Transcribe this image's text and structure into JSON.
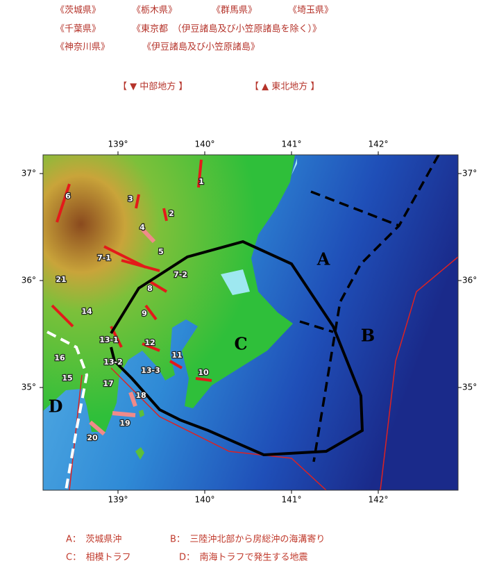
{
  "links": {
    "prefectures": [
      "《茨城県》",
      "《栃木県》",
      "《群馬県》",
      "《埼玉県》",
      "《千葉県》",
      "《東京都　（伊豆諸島及び小笠原諸島を除く）》",
      "《神奈川県》",
      "《伊豆諸島及び小笠原諸島》"
    ],
    "regions": [
      "【 ▼ 中部地方 】",
      "【 ▲ 東北地方 】"
    ]
  },
  "map": {
    "xlim": [
      138.136,
      142.92
    ],
    "ylim": [
      34.04,
      37.175
    ],
    "lon_ticks": [
      {
        "value": 139,
        "label": "139°"
      },
      {
        "value": 140,
        "label": "140°"
      },
      {
        "value": 141,
        "label": "141°"
      },
      {
        "value": 142,
        "label": "142°"
      }
    ],
    "lat_ticks": [
      {
        "value": 37,
        "label": "37°"
      },
      {
        "value": 36,
        "label": "36°"
      },
      {
        "value": 35,
        "label": "35°"
      }
    ],
    "labels": [
      "A",
      "B",
      "C",
      "D",
      "1",
      "2",
      "3",
      "4",
      "5",
      "6",
      "7-1",
      "7-2",
      "8",
      "9",
      "10",
      "11",
      "12",
      "13-1",
      "13-2",
      "13-3",
      "14",
      "15",
      "16",
      "17",
      "18",
      "19",
      "20",
      "21"
    ]
  },
  "legend": [
    "A：　茨城県沖",
    "B：　三陸沖北部から房総沖の海溝寄り",
    "C：　相模トラフ",
    "D：　南海トラフで発生する地震"
  ]
}
